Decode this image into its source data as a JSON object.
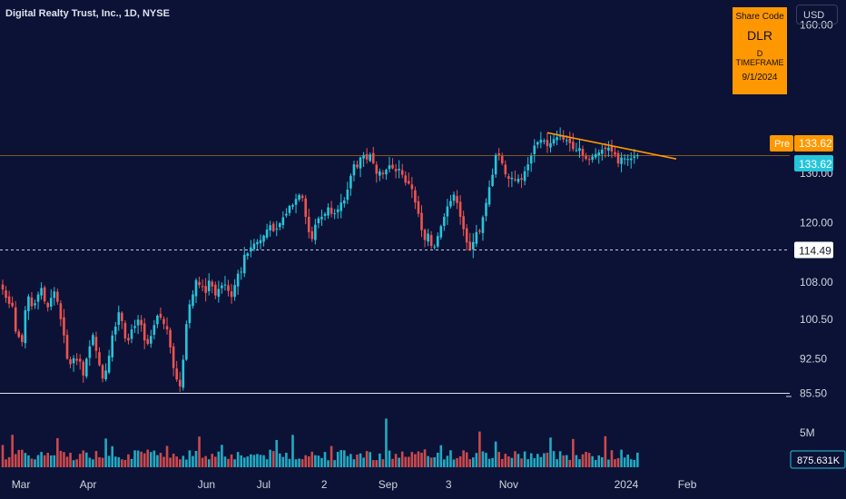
{
  "header": {
    "title": "Digital Realty Trust, Inc., 1D, NYSE",
    "currency": "USD"
  },
  "info_box": {
    "line1": "Share Code",
    "line2": "DLR",
    "line3": "D TIMEFRAME",
    "line4": "9/1/2024"
  },
  "price_axis": {
    "ticks": [
      {
        "label": "160.00",
        "value": 160.0
      },
      {
        "label": "130.00",
        "value": 130.0
      },
      {
        "label": "120.00",
        "value": 120.0
      },
      {
        "label": "108.00",
        "value": 108.0
      },
      {
        "label": "100.50",
        "value": 100.5
      },
      {
        "label": "92.50",
        "value": 92.5
      },
      {
        "label": "85.50",
        "value": 85.5
      }
    ],
    "pre_label": "Pre",
    "pre_value": "133.62",
    "last_value": "133.62",
    "level_label": "114.49"
  },
  "volume_axis": {
    "tick_label": "5M",
    "current_volume": "875.631K"
  },
  "time_axis": {
    "labels": [
      "Mar",
      "Apr",
      "Jun",
      "Jul",
      "2",
      "Sep",
      "3",
      "Nov",
      "2024",
      "Feb"
    ]
  },
  "colors": {
    "background": "#0b1236",
    "up": "#26c6da",
    "down": "#ef5350",
    "trendline": "#ff9800",
    "pre_badge": "#ff9800",
    "last_badge": "#26c6da"
  },
  "chart_data": {
    "type": "candlestick",
    "symbol": "DLR",
    "timeframe": "1D",
    "price_range": [
      82,
      172
    ],
    "horizontal_levels": [
      {
        "price": 114.49,
        "style": "dashed"
      },
      {
        "price": 85.5,
        "style": "solid"
      },
      {
        "price": 133.62,
        "style": "solid-orange-thin"
      }
    ],
    "trendline": {
      "start_price": 138.2,
      "end_price": 132.9
    },
    "closes": [
      106.5,
      104.8,
      103.6,
      103.1,
      98.0,
      96.9,
      95.9,
      102.3,
      105.1,
      103.1,
      103.7,
      105.5,
      106.8,
      104.1,
      102.9,
      104.8,
      106.1,
      104.0,
      100.5,
      97.2,
      92.5,
      91.4,
      92.6,
      92.1,
      91.9,
      89.1,
      92.5,
      95.0,
      97.3,
      94.1,
      91.2,
      88.5,
      90.1,
      93.1,
      97.2,
      99.0,
      101.9,
      100.1,
      96.6,
      96.2,
      98.4,
      99.1,
      100.4,
      99.3,
      96.2,
      95.5,
      97.1,
      99.3,
      101.2,
      100.8,
      99.5,
      98.4,
      94.8,
      90.6,
      88.3,
      86.9,
      92.3,
      99.5,
      103.5,
      105.5,
      108.4,
      107.4,
      107.1,
      105.8,
      108.3,
      107.1,
      105.3,
      106.6,
      107.3,
      107.5,
      106.2,
      105.0,
      107.4,
      109.7,
      110.1,
      113.5,
      113.8,
      115.0,
      115.8,
      116.1,
      116.5,
      117.4,
      118.6,
      119.5,
      118.3,
      118.8,
      119.9,
      121.1,
      121.8,
      123.4,
      123.6,
      124.8,
      125.6,
      125.0,
      121.2,
      118.1,
      116.7,
      119.6,
      120.9,
      121.2,
      121.8,
      123.1,
      121.8,
      121.9,
      122.7,
      124.1,
      124.5,
      126.7,
      129.5,
      131.8,
      131.2,
      133.2,
      133.7,
      132.8,
      133.8,
      132.0,
      129.9,
      130.4,
      129.8,
      130.7,
      131.6,
      131.0,
      130.4,
      130.9,
      129.7,
      128.1,
      127.9,
      126.8,
      124.1,
      121.8,
      118.5,
      116.5,
      117.8,
      115.3,
      115.2,
      117.3,
      119.3,
      121.2,
      123.3,
      124.4,
      125.7,
      124.0,
      121.2,
      118.7,
      116.0,
      114.5,
      116.1,
      118.1,
      118.2,
      121.1,
      124.0,
      127.2,
      129.7,
      133.7,
      133.6,
      132.0,
      129.8,
      128.9,
      129.1,
      128.6,
      128.9,
      128.7,
      130.4,
      131.8,
      133.5,
      135.6,
      136.3,
      136.8,
      136.6,
      135.5,
      136.1,
      136.9,
      137.3,
      137.6,
      136.8,
      136.7,
      136.1,
      134.9,
      134.7,
      135.1,
      133.5,
      132.9,
      132.7,
      133.4,
      133.9,
      134.2,
      134.8,
      134.9,
      135.2,
      134.4,
      133.8,
      132.0,
      133.2,
      133.0,
      132.9,
      133.0,
      133.4,
      133.62
    ]
  }
}
